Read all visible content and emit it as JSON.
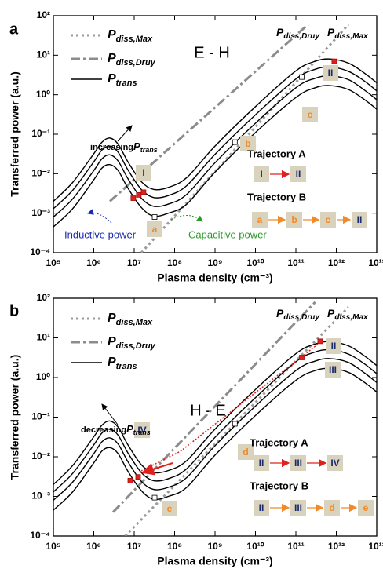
{
  "chart_data": [
    {
      "type": "line",
      "panel_label": "a",
      "title": "E - H",
      "x_label": "Plasma density (cm⁻³)",
      "y_label": "Transferred power (a.u.)",
      "log_x": true,
      "log_y": true,
      "legend": "upper left",
      "xlim": [
        100000,
        10000000000000
      ],
      "ylim": [
        0.0001,
        100
      ],
      "xticks": [
        {
          "value": 100000,
          "label": "10⁵"
        },
        {
          "value": 1000000,
          "label": "10⁶"
        },
        {
          "value": 10000000,
          "label": "10⁷"
        },
        {
          "value": 100000000,
          "label": "10⁸"
        },
        {
          "value": 1000000000,
          "label": "10⁹"
        },
        {
          "value": 10000000000,
          "label": "10¹⁰"
        },
        {
          "value": 100000000000,
          "label": "10¹¹"
        },
        {
          "value": 1000000000000,
          "label": "10¹²"
        },
        {
          "value": 10000000000000,
          "label": "10¹³"
        }
      ],
      "yticks": [
        {
          "value": 0.0001,
          "label": "10⁻⁴"
        },
        {
          "value": 0.001,
          "label": "10⁻³"
        },
        {
          "value": 0.01,
          "label": "10⁻²"
        },
        {
          "value": 0.1,
          "label": "10⁻¹"
        },
        {
          "value": 1,
          "label": "10⁰"
        },
        {
          "value": 10,
          "label": "10¹"
        },
        {
          "value": 100,
          "label": "10²"
        }
      ],
      "x": [
        100000,
        300000,
        1000000,
        1600000,
        2500000,
        4000000,
        7000000,
        15000000,
        30000000,
        70000000,
        200000000,
        1000000000,
        10000000000,
        100000000000,
        300000000000,
        700000000000,
        2000000000000,
        5000000000000,
        10000000000000
      ],
      "series": [
        {
          "name": "P",
          "name_sub": "diss,Max",
          "color": "#9a9a9a",
          "style": "dot",
          "x": [
            15000000,
            2000000000000
          ],
          "values": [
            0.0001,
            60
          ]
        },
        {
          "name": "P",
          "name_sub": "diss,Druy",
          "color": "#8c8c8c",
          "style": "dashdot",
          "x": [
            2500000,
            200000000000
          ],
          "values": [
            0.002,
            60
          ]
        },
        {
          "name": "P",
          "name_sub": "trans",
          "color": "#000000",
          "style": "solid",
          "values": [
            0.002,
            0.006,
            0.032,
            0.063,
            0.08,
            0.056,
            0.02,
            0.0063,
            0.004,
            0.0045,
            0.008,
            0.05,
            0.5,
            4,
            7,
            8,
            6.3,
            3.5,
            2
          ]
        },
        {
          "color": "#000000",
          "style": "solid",
          "values": [
            0.0013,
            0.0038,
            0.02,
            0.04,
            0.05,
            0.035,
            0.0125,
            0.004,
            0.0025,
            0.0028,
            0.005,
            0.031,
            0.31,
            2.5,
            4.4,
            5,
            3.9,
            2.2,
            1.25
          ]
        },
        {
          "color": "#000000",
          "style": "solid",
          "values": [
            0.0008,
            0.0023,
            0.012,
            0.024,
            0.03,
            0.021,
            0.0075,
            0.0024,
            0.0015,
            0.0017,
            0.003,
            0.019,
            0.19,
            1.5,
            2.6,
            3,
            2.4,
            1.3,
            0.75
          ]
        },
        {
          "color": "#000000",
          "style": "solid",
          "values": [
            0.00045,
            0.0013,
            0.007,
            0.014,
            0.017,
            0.012,
            0.0043,
            0.0014,
            0.00085,
            0.001,
            0.0017,
            0.011,
            0.11,
            0.85,
            1.5,
            1.7,
            1.35,
            0.75,
            0.43
          ]
        }
      ],
      "points": {
        "x": [
          9500000,
          13000000,
          17000000,
          890000000000,
          32000000,
          3100000000,
          140000000000
        ],
        "values": [
          0.0024,
          0.0029,
          0.0034,
          7,
          0.0008,
          0.063,
          2.8
        ],
        "colors": [
          "#e0201c",
          "#e0201c",
          "#e0201c",
          "#e0201c",
          "#ffffff",
          "#ffffff",
          "#ffffff"
        ]
      },
      "top_labels": [
        {
          "text": "P",
          "sub": "diss,Druy"
        },
        {
          "text": "P",
          "sub": "diss,Max"
        }
      ],
      "box_labels": [
        "I",
        "II",
        "a",
        "b",
        "c"
      ],
      "note": {
        "text": "increasing",
        "symbol": "P",
        "sub": "trans"
      },
      "power_labels": [
        {
          "text": "Inductive power",
          "color": "#1a2ab0"
        },
        {
          "text": "Capacitive power",
          "color": "#2a9a2a"
        }
      ],
      "trajectories": [
        {
          "title": "Trajectory A",
          "steps": [
            "I",
            "II"
          ],
          "arrow_color": "#e0201c"
        },
        {
          "title": "Trajectory B",
          "steps": [
            "a",
            "b",
            "c",
            "II"
          ],
          "arrow_color": "#f08a2a"
        }
      ]
    },
    {
      "type": "line",
      "panel_label": "b",
      "title": "H - E",
      "x_label": "Plasma density (cm⁻³)",
      "y_label": "Transferred power (a.u.)",
      "log_x": true,
      "log_y": true,
      "legend": "upper left",
      "xlim": [
        100000,
        10000000000000
      ],
      "ylim": [
        0.0001,
        100
      ],
      "xticks": [
        {
          "value": 100000,
          "label": "10⁵"
        },
        {
          "value": 1000000,
          "label": "10⁶"
        },
        {
          "value": 10000000,
          "label": "10⁷"
        },
        {
          "value": 100000000,
          "label": "10⁸"
        },
        {
          "value": 1000000000,
          "label": "10⁹"
        },
        {
          "value": 10000000000,
          "label": "10¹⁰"
        },
        {
          "value": 100000000000,
          "label": "10¹¹"
        },
        {
          "value": 1000000000000,
          "label": "10¹²"
        },
        {
          "value": 10000000000000,
          "label": "10¹³"
        }
      ],
      "yticks": [
        {
          "value": 0.0001,
          "label": "10⁻⁴"
        },
        {
          "value": 0.001,
          "label": "10⁻³"
        },
        {
          "value": 0.01,
          "label": "10⁻²"
        },
        {
          "value": 0.1,
          "label": "10⁻¹"
        },
        {
          "value": 1,
          "label": "10⁰"
        },
        {
          "value": 10,
          "label": "10¹"
        },
        {
          "value": 100,
          "label": "10²"
        }
      ],
      "x": [
        100000,
        300000,
        1000000,
        1600000,
        2500000,
        4000000,
        7000000,
        15000000,
        30000000,
        70000000,
        200000000,
        1000000000,
        10000000000,
        100000000000,
        300000000000,
        700000000000,
        2000000000000,
        5000000000000,
        10000000000000
      ],
      "series": [
        {
          "name": "P",
          "name_sub": "diss,Max",
          "color": "#9a9a9a",
          "style": "dot",
          "x": [
            6000000,
            2000000000000
          ],
          "values": [
            0.0001,
            60
          ]
        },
        {
          "name": "P",
          "name_sub": "diss,Druy",
          "color": "#8c8c8c",
          "style": "dashdot",
          "x": [
            3000000,
            300000000000
          ],
          "values": [
            0.0004,
            80
          ]
        },
        {
          "name": "P",
          "name_sub": "trans",
          "color": "#000000",
          "style": "solid",
          "values": [
            0.002,
            0.006,
            0.032,
            0.063,
            0.08,
            0.056,
            0.02,
            0.0063,
            0.004,
            0.0045,
            0.008,
            0.05,
            0.5,
            4,
            7,
            8,
            6.3,
            3.5,
            2
          ]
        },
        {
          "color": "#000000",
          "style": "solid",
          "values": [
            0.0013,
            0.0038,
            0.02,
            0.04,
            0.05,
            0.035,
            0.0125,
            0.004,
            0.0025,
            0.0028,
            0.005,
            0.031,
            0.31,
            2.5,
            4.4,
            5,
            3.9,
            2.2,
            1.25
          ]
        },
        {
          "color": "#000000",
          "style": "solid",
          "values": [
            0.0008,
            0.0023,
            0.012,
            0.024,
            0.03,
            0.021,
            0.0075,
            0.0024,
            0.0015,
            0.0017,
            0.003,
            0.019,
            0.19,
            1.5,
            2.6,
            3,
            2.4,
            1.3,
            0.75
          ]
        },
        {
          "color": "#000000",
          "style": "solid",
          "values": [
            0.00045,
            0.0013,
            0.007,
            0.014,
            0.017,
            0.012,
            0.0043,
            0.0014,
            0.00085,
            0.001,
            0.0017,
            0.011,
            0.11,
            0.85,
            1.5,
            1.7,
            1.35,
            0.75,
            0.43
          ]
        }
      ],
      "points": {
        "x": [
          8000000,
          12500000,
          140000000000,
          400000000000,
          32000000,
          3100000000
        ],
        "values": [
          0.0025,
          0.0031,
          3.2,
          8.2,
          0.00093,
          0.068
        ],
        "colors": [
          "#e0201c",
          "#e0201c",
          "#e0201c",
          "#e0201c",
          "#ffffff",
          "#ffffff"
        ]
      },
      "top_labels": [
        {
          "text": "P",
          "sub": "diss,Druy"
        },
        {
          "text": "P",
          "sub": "diss,Max"
        }
      ],
      "box_labels": [
        "II",
        "III",
        "IV",
        "d",
        "e"
      ],
      "note": {
        "text": "decreasing",
        "symbol": "P",
        "sub": "trans"
      },
      "trajectories": [
        {
          "title": "Trajectory A",
          "steps": [
            "II",
            "III",
            "IV"
          ],
          "arrow_color": "#e0201c"
        },
        {
          "title": "Trajectory B",
          "steps": [
            "II",
            "III",
            "d",
            "e"
          ],
          "arrow_color": "#f08a2a"
        }
      ]
    }
  ]
}
